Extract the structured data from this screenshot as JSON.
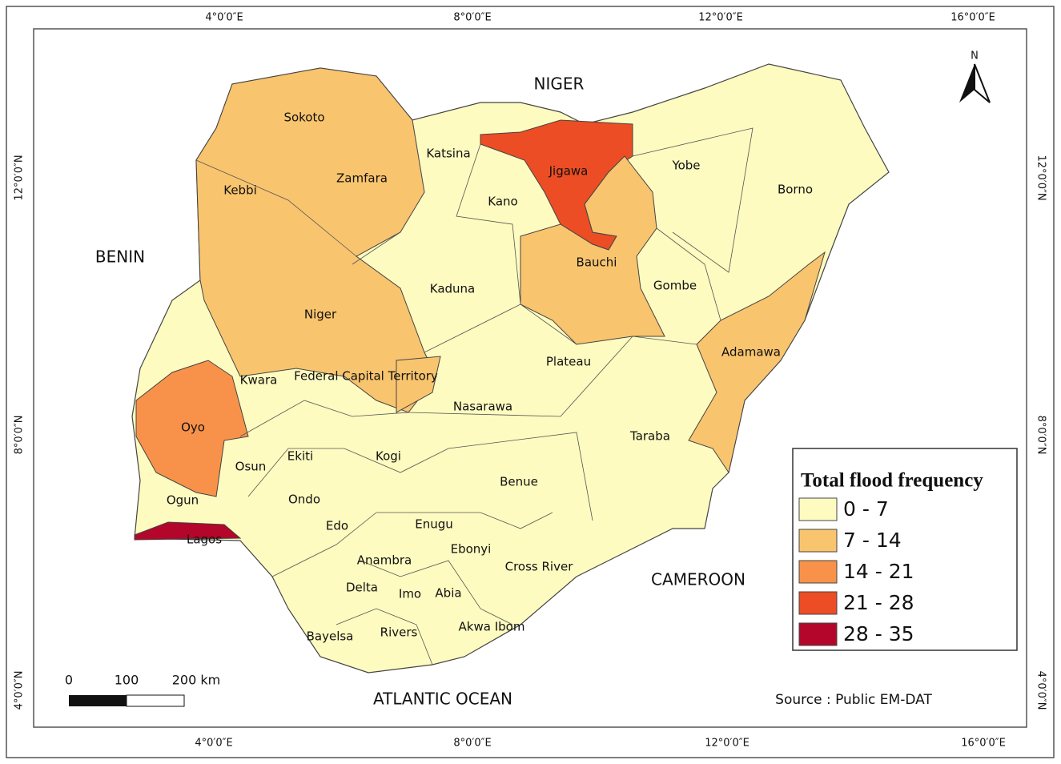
{
  "map": {
    "country_labels": [
      "NIGER",
      "BENIN",
      "CAMEROON",
      "ATLANTIC OCEAN"
    ],
    "states": [
      {
        "name": "Sokoto",
        "color": "#f9c46e"
      },
      {
        "name": "Kebbi",
        "color": "#f9c46e"
      },
      {
        "name": "Zamfara",
        "color": "#f9c46e"
      },
      {
        "name": "Niger",
        "color": "#f9c46e"
      },
      {
        "name": "Katsina",
        "color": "#fdfbc0"
      },
      {
        "name": "Kano",
        "color": "#fdfbc0"
      },
      {
        "name": "Jigawa",
        "color": "#ec4d24"
      },
      {
        "name": "Yobe",
        "color": "#fdfbc0"
      },
      {
        "name": "Borno",
        "color": "#fdfbc0"
      },
      {
        "name": "Bauchi",
        "color": "#f9c46e"
      },
      {
        "name": "Gombe",
        "color": "#fdfbc0"
      },
      {
        "name": "Kaduna",
        "color": "#fdfbc0"
      },
      {
        "name": "Kwara",
        "color": "#fdfbc0"
      },
      {
        "name": "Federal Capital Territory",
        "color": "#f9c46e"
      },
      {
        "name": "Plateau",
        "color": "#fdfbc0"
      },
      {
        "name": "Adamawa",
        "color": "#f9c46e"
      },
      {
        "name": "Oyo",
        "color": "#f8924a"
      },
      {
        "name": "Nasarawa",
        "color": "#fdfbc0"
      },
      {
        "name": "Taraba",
        "color": "#fdfbc0"
      },
      {
        "name": "Osun",
        "color": "#fdfbc0"
      },
      {
        "name": "Ekiti",
        "color": "#fdfbc0"
      },
      {
        "name": "Kogi",
        "color": "#fdfbc0"
      },
      {
        "name": "Benue",
        "color": "#fdfbc0"
      },
      {
        "name": "Ogun",
        "color": "#fdfbc0"
      },
      {
        "name": "Ondo",
        "color": "#fdfbc0"
      },
      {
        "name": "Edo",
        "color": "#fdfbc0"
      },
      {
        "name": "Enugu",
        "color": "#fdfbc0"
      },
      {
        "name": "Lagos",
        "color": "#b3062a"
      },
      {
        "name": "Ebonyi",
        "color": "#fdfbc0"
      },
      {
        "name": "Anambra",
        "color": "#fdfbc0"
      },
      {
        "name": "Cross River",
        "color": "#fdfbc0"
      },
      {
        "name": "Delta",
        "color": "#fdfbc0"
      },
      {
        "name": "Imo",
        "color": "#fdfbc0"
      },
      {
        "name": "Abia",
        "color": "#fdfbc0"
      },
      {
        "name": "Akwa Ibom",
        "color": "#fdfbc0"
      },
      {
        "name": "Bayelsa",
        "color": "#fdfbc0"
      },
      {
        "name": "Rivers",
        "color": "#fdfbc0"
      }
    ],
    "legend": {
      "title": "Total flood frequency",
      "items": [
        {
          "label": "0 - 7",
          "color": "#fdfbc0"
        },
        {
          "label": "7 - 14",
          "color": "#f9c46e"
        },
        {
          "label": "14 - 21",
          "color": "#f8924a"
        },
        {
          "label": "21 - 28",
          "color": "#ec4d24"
        },
        {
          "label": "28 - 35",
          "color": "#b3062a"
        }
      ]
    },
    "graticule": {
      "top": [
        "4°0′0″E",
        "8°0′0″E",
        "12°0′0″E",
        "16°0′0″E"
      ],
      "bottom": [
        "4°0′0″E",
        "8°0′0″E",
        "12°0′0″E",
        "16°0′0″E"
      ],
      "left": [
        "12°0′0″N",
        "8°0′0″N",
        "4°0′0″N"
      ],
      "right": [
        "12°0′0″N",
        "8°0′0″N",
        "4°0′0″N"
      ]
    },
    "scale_bar": {
      "labels": [
        "0",
        "100",
        "200 km"
      ]
    },
    "source": "Source : Public EM-DAT",
    "north": "N"
  }
}
